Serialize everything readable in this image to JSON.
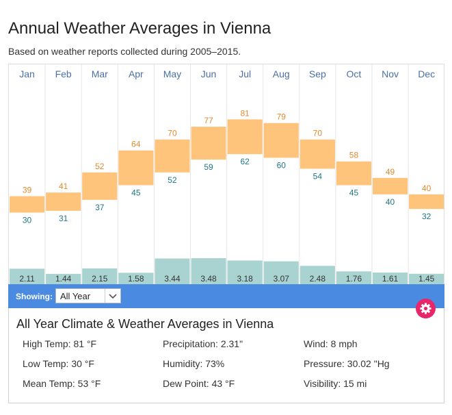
{
  "title": "Annual Weather Averages in Vienna",
  "subtitle": "Based on weather reports collected during 2005–2015.",
  "colors": {
    "high_low_box": "#ffc47c",
    "precip_bar": "#a9d3d0",
    "showing_bar": "#4a8ae0",
    "gear_button": "#e8266a",
    "month_label": "#4a6fa5",
    "high_label": "#e38a2c",
    "low_label": "#1e7585"
  },
  "chart_data": {
    "type": "bar",
    "categories": [
      "Jan",
      "Feb",
      "Mar",
      "Apr",
      "May",
      "Jun",
      "Jul",
      "Aug",
      "Sep",
      "Oct",
      "Nov",
      "Dec"
    ],
    "series": [
      {
        "values": [
          39,
          41,
          52,
          64,
          70,
          77,
          81,
          79,
          70,
          58,
          49,
          40
        ]
      },
      {
        "values": [
          30,
          31,
          37,
          45,
          52,
          59,
          62,
          60,
          54,
          45,
          40,
          32
        ]
      },
      {
        "values": [
          2.11,
          1.44,
          2.15,
          1.58,
          3.44,
          3.48,
          3.18,
          3.07,
          2.48,
          1.76,
          1.61,
          1.45
        ]
      }
    ]
  },
  "controls": {
    "showing_label": "Showing:",
    "period_selected": "All Year",
    "settings_icon": "gear-icon",
    "dropdown_icon": "chevron-down-icon"
  },
  "summary": {
    "title": "All Year Climate & Weather Averages in Vienna",
    "stats": [
      "High Temp: 81 °F",
      "Low Temp: 30 °F",
      "Mean Temp: 53 °F",
      "Precipitation: 2.31\"",
      "Humidity: 73%",
      "Dew Point: 43 °F",
      "Wind: 8 mph",
      "Pressure: 30.02 \"Hg",
      "Visibility: 15 mi"
    ]
  }
}
